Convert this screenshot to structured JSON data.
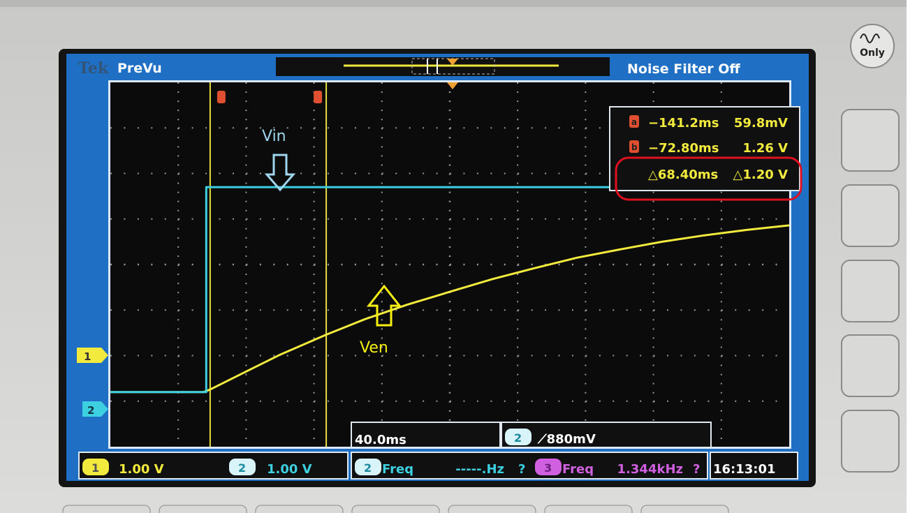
{
  "header": {
    "brand": "Tek",
    "mode": "PreVu",
    "noise_filter": "Noise Filter Off"
  },
  "front_panel": {
    "only_button": "Only"
  },
  "cursor_readout": {
    "a": {
      "label": "a",
      "time": "−141.2ms",
      "value": "59.8mV"
    },
    "b": {
      "label": "b",
      "time": "−72.80ms",
      "value": "1.26 V"
    },
    "delta": {
      "time": "△68.40ms",
      "value": "△1.20 V"
    }
  },
  "annotations": {
    "vin": "Vin",
    "ven": "Ven"
  },
  "status": {
    "ch1_label": "1",
    "ch1_scale": "1.00 V",
    "ch2_label": "2",
    "ch2_scale": "1.00 V",
    "timebase": "40.0ms",
    "trigger_source": "2",
    "trigger_level": "880mV",
    "meas1_source": "2",
    "meas1_name": "Freq",
    "meas1_value": "-----.Hz",
    "meas1_flag": "?",
    "meas2_source": "3",
    "meas2_name": "Freq",
    "meas2_value": "1.344kHz",
    "meas2_flag": "?",
    "clock": "16:13:01"
  },
  "colors": {
    "ch1": "#f2ea3c",
    "ch2": "#3cd0e0",
    "ch3": "#d060e0",
    "cursor_tag": "#e05030",
    "frame": "#1f6fc4",
    "highlight": "#e01020"
  },
  "chart_data": {
    "type": "line",
    "xlabel": "",
    "ylabel": "",
    "x_units": "ms",
    "y_units": "V",
    "xlim": [
      -200,
      200
    ],
    "ylim": [
      -1.2,
      6.8
    ],
    "grid": true,
    "divisions": {
      "x": 10,
      "y": 8
    },
    "cursors_ms": [
      -141.2,
      -72.8
    ],
    "series": [
      {
        "channel": "1",
        "color": "#f2ea3c",
        "x": [
          -200,
          -145,
          -141,
          -120,
          -100,
          -72.8,
          -50,
          -25,
          0,
          25,
          50,
          75,
          100,
          125,
          150,
          175,
          200
        ],
        "y": [
          0,
          0,
          0.06,
          0.45,
          0.82,
          1.26,
          1.6,
          1.92,
          2.2,
          2.48,
          2.72,
          2.95,
          3.13,
          3.3,
          3.44,
          3.56,
          3.66
        ]
      },
      {
        "channel": "2",
        "color": "#3cd0e0",
        "x": [
          -200,
          -143.5,
          -143.5,
          200
        ],
        "y": [
          0,
          0,
          4.5,
          4.5
        ]
      }
    ]
  }
}
